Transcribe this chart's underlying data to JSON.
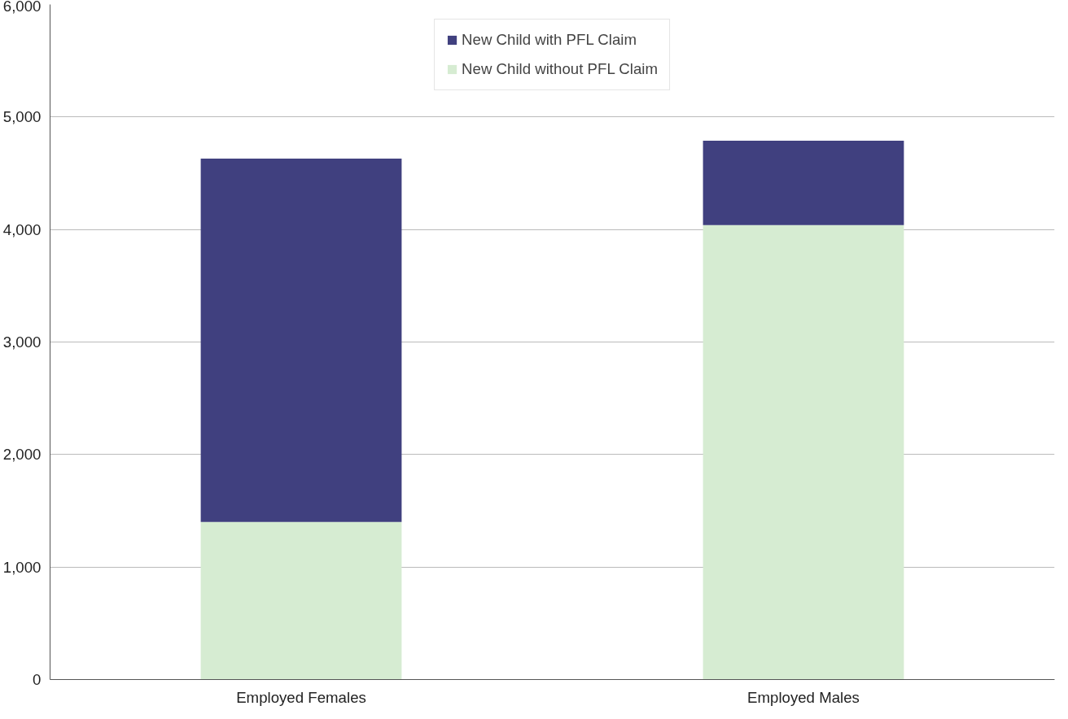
{
  "chart_data": {
    "type": "bar",
    "stacked": true,
    "categories": [
      "Employed Females",
      "Employed Males"
    ],
    "series": [
      {
        "name": "New Child without PFL Claim",
        "color": "#d6ecd2",
        "values": [
          1400,
          4040
        ]
      },
      {
        "name": "New Child with PFL Claim",
        "color": "#40407f",
        "values": [
          3230,
          750
        ]
      }
    ],
    "ylim": [
      0,
      6000
    ],
    "yticks": [
      {
        "value": 0,
        "label": "0"
      },
      {
        "value": 1000,
        "label": "1,000"
      },
      {
        "value": 2000,
        "label": "2,000"
      },
      {
        "value": 3000,
        "label": "3,000"
      },
      {
        "value": 4000,
        "label": "4,000"
      },
      {
        "value": 5000,
        "label": "5,000"
      },
      {
        "value": 6000,
        "label": "6,000"
      }
    ],
    "grid": "y",
    "legend": "top"
  }
}
